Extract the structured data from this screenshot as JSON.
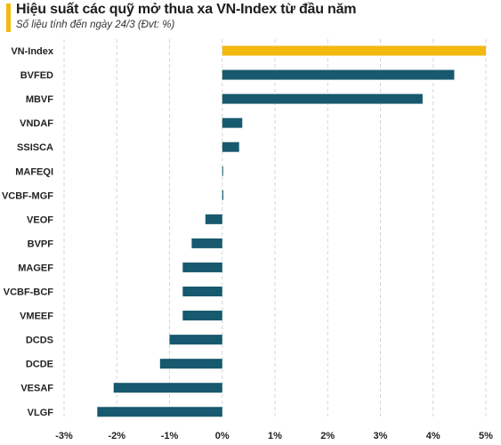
{
  "header": {
    "title": "Hiệu suất các quỹ mở thua xa VN-Index từ đầu năm",
    "subtitle": "Số liệu tính đến ngày 24/3 (Đvt: %)",
    "accent_color": "#f2b90f"
  },
  "chart_data": {
    "type": "bar",
    "orientation": "horizontal",
    "title": "Hiệu suất các quỹ mở thua xa VN-Index từ đầu năm",
    "subtitle": "Số liệu tính đến ngày 24/3 (Đvt: %)",
    "categories": [
      "VN-Index",
      "BVFED",
      "MBVF",
      "VNDAF",
      "SSISCA",
      "MAFEQI",
      "VCBF-MGF",
      "VEOF",
      "BVPF",
      "MAGEF",
      "VCBF-BCF",
      "VMEEF",
      "DCDS",
      "DCDE",
      "VESAF",
      "VLGF"
    ],
    "values": [
      5.0,
      4.4,
      3.8,
      0.38,
      0.32,
      0.01,
      0.02,
      -0.32,
      -0.58,
      -0.75,
      -0.75,
      -0.75,
      -1.0,
      -1.18,
      -2.06,
      -2.37
    ],
    "colors": {
      "highlight": "#f2b90f",
      "default": "#17596e"
    },
    "highlight_category": "VN-Index",
    "xlim": [
      -3,
      5
    ],
    "xticks": [
      -3,
      -2,
      -1,
      0,
      1,
      2,
      3,
      4,
      5
    ],
    "xtick_labels": [
      "-3%",
      "-2%",
      "-1%",
      "0%",
      "1%",
      "2%",
      "3%",
      "4%",
      "5%"
    ],
    "grid": "vertical dashed",
    "legend": "none"
  }
}
